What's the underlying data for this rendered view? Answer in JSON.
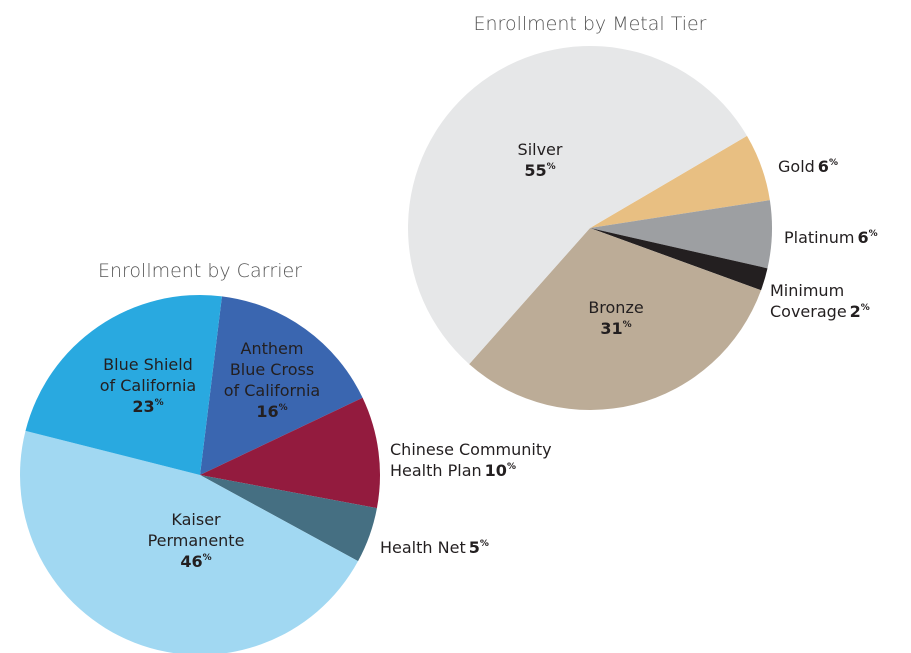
{
  "chart_data": [
    {
      "type": "pie",
      "title": "Enrollment by Carrier",
      "categories": [
        "Anthem Blue Cross of California",
        "Chinese Community Health Plan",
        "Health Net",
        "Kaiser Permanente",
        "Blue Shield of California"
      ],
      "values": [
        16,
        10,
        5,
        46,
        23
      ],
      "value_labels": [
        "16%",
        "10%",
        "5%",
        "46%",
        "23%"
      ],
      "colors": [
        "#3a66b0",
        "#931b3e",
        "#456f82",
        "#a1d8f2",
        "#29a9e0"
      ]
    },
    {
      "type": "pie",
      "title": "Enrollment by Metal Tier",
      "categories": [
        "Gold",
        "Platinum",
        "Minimum Coverage",
        "Bronze",
        "Silver"
      ],
      "values": [
        6,
        6,
        2,
        31,
        55
      ],
      "value_labels": [
        "6%",
        "6%",
        "2%",
        "31%",
        "55%"
      ],
      "colors": [
        "#e8bf82",
        "#9d9fa2",
        "#231f20",
        "#bcac97",
        "#e6e7e8"
      ]
    }
  ]
}
